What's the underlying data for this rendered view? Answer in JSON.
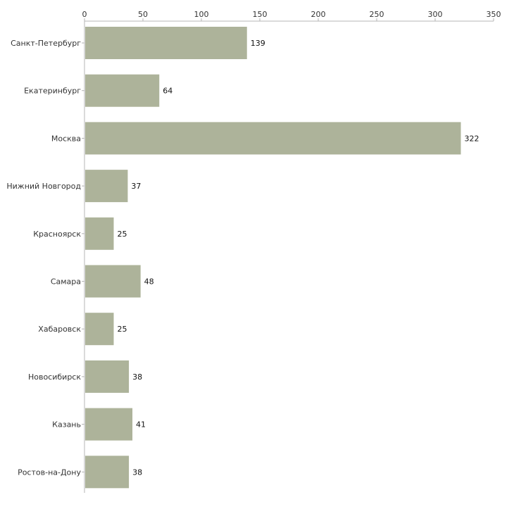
{
  "chart_data": {
    "type": "bar",
    "orientation": "horizontal",
    "title": "",
    "xlabel": "",
    "ylabel": "",
    "categories": [
      "Санкт-Петербург",
      "Екатеринбург",
      "Москва",
      "Нижний Новгород",
      "Красноярск",
      "Самара",
      "Хабаровск",
      "Новосибирск",
      "Казань",
      "Ростов-на-Дону"
    ],
    "values": [
      139,
      64,
      322,
      37,
      25,
      48,
      25,
      38,
      41,
      38
    ],
    "xlim": [
      0,
      350
    ],
    "ticks": [
      0,
      50,
      100,
      150,
      200,
      250,
      300,
      350
    ],
    "axis_position": "top",
    "grid": false,
    "legend": "none",
    "colors": {
      "bar": "#adb39a",
      "axis": "#b5b5b5",
      "text": "#333333"
    }
  }
}
